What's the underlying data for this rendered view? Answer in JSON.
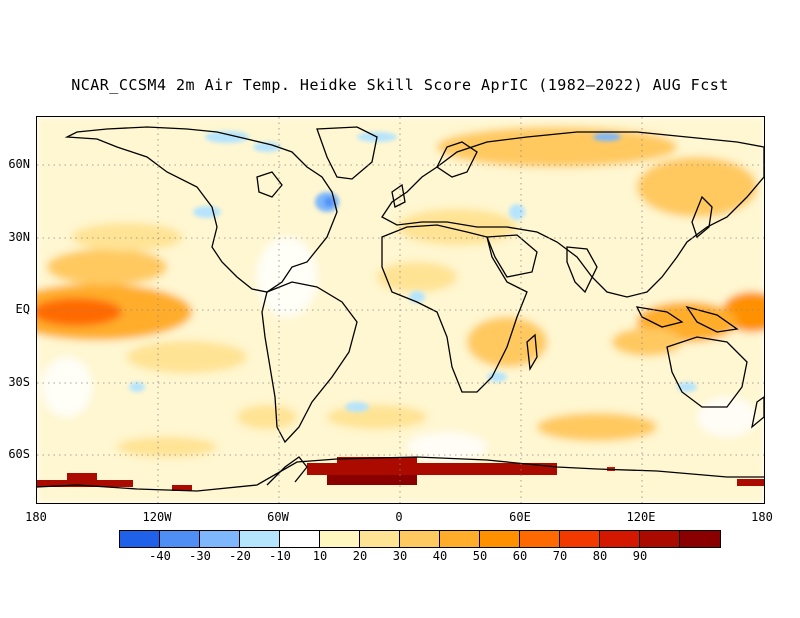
{
  "title": "NCAR_CCSM4 2m Air Temp. Heidke Skill Score AprIC (1982–2022) AUG Fcst",
  "map": {
    "lat_labels": [
      "60N",
      "30N",
      "EQ",
      "30S",
      "60S"
    ],
    "lon_labels": [
      "180",
      "120W",
      "60W",
      "0",
      "60E",
      "120E",
      "180"
    ],
    "background_color": "#fffef6",
    "coastline_color": "#000000",
    "gridline_style": "dotted"
  },
  "colorbar": {
    "colors": [
      "#1f61e8",
      "#4f8ff5",
      "#7eb7fb",
      "#b5e4fd",
      "#ffffff",
      "#fff7bf",
      "#ffe394",
      "#ffc961",
      "#ffad2b",
      "#ff9100",
      "#ff6a00",
      "#f23a00",
      "#d41800",
      "#aa0a00",
      "#8a0000"
    ],
    "labels": [
      "-40",
      "-30",
      "-20",
      "-10",
      "10",
      "20",
      "30",
      "40",
      "50",
      "60",
      "70",
      "80",
      "90"
    ]
  }
}
